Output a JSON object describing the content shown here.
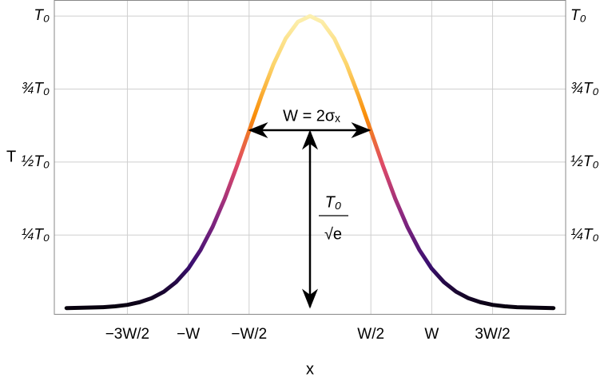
{
  "chart_data": {
    "type": "line",
    "x_label": "x",
    "y_label": "T",
    "x": [
      -2.0,
      -1.9,
      -1.8,
      -1.7,
      -1.6,
      -1.5,
      -1.4,
      -1.3,
      -1.2,
      -1.1,
      -1.0,
      -0.9,
      -0.8,
      -0.7,
      -0.6,
      -0.5,
      -0.4,
      -0.3,
      -0.2,
      -0.1,
      0,
      0.1,
      0.2,
      0.3,
      0.4,
      0.5,
      0.6,
      0.7,
      0.8,
      0.9,
      1.0,
      1.1,
      1.2,
      1.3,
      1.4,
      1.5,
      1.6,
      1.7,
      1.8,
      1.9,
      2.0
    ],
    "series": [
      {
        "values": [
          0.0,
          0.001,
          0.002,
          0.003,
          0.006,
          0.011,
          0.02,
          0.034,
          0.056,
          0.089,
          0.135,
          0.198,
          0.278,
          0.375,
          0.487,
          0.607,
          0.726,
          0.835,
          0.923,
          0.98,
          1,
          0.98,
          0.923,
          0.835,
          0.726,
          0.607,
          0.487,
          0.375,
          0.278,
          0.198,
          0.135,
          0.089,
          0.056,
          0.034,
          0.02,
          0.011,
          0.006,
          0.003,
          0.002,
          0.001,
          0.0
        ]
      }
    ],
    "colormap": [
      "#000000",
      "#3b0f70",
      "#8c2981",
      "#de4968",
      "#f98e09",
      "#fcd46a",
      "#fcf0b0"
    ],
    "xlim": [
      -2.1,
      2.1
    ],
    "ylim": [
      -0.02,
      1.055
    ],
    "xticks": [
      {
        "value": -1.5,
        "label": "−3W/2"
      },
      {
        "value": -1,
        "label": "−W"
      },
      {
        "value": -0.5,
        "label": "−W/2"
      },
      {
        "value": 0.5,
        "label": "W/2"
      },
      {
        "value": 1,
        "label": "W"
      },
      {
        "value": 1.5,
        "label": "3W/2"
      }
    ],
    "yticks": [
      {
        "value": 0.25,
        "label": "¼T₀"
      },
      {
        "value": 0.5,
        "label": "½T₀"
      },
      {
        "value": 0.75,
        "label": "¾T₀"
      },
      {
        "value": 1,
        "label": "T₀"
      }
    ],
    "grid": true,
    "annotations": [
      "W = 2σₓ",
      "T₀",
      "√e"
    ]
  }
}
